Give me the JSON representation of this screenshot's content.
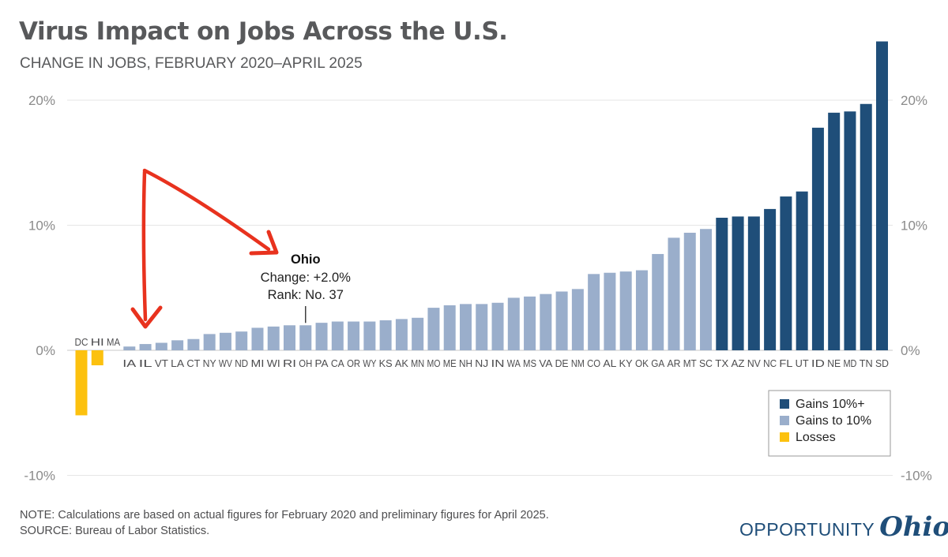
{
  "title": "Virus Impact on Jobs Across the U.S.",
  "subtitle": "CHANGE IN JOBS, FEBRUARY 2020–APRIL 2025",
  "note": "NOTE: Calculations are based on actual figures for February 2020 and preliminary figures for April 2025.",
  "source": "SOURCE: Bureau of Labor Statistics.",
  "logo": {
    "word": "OPPORTUNITY",
    "script": "Ohio"
  },
  "chart_data": {
    "type": "bar",
    "categories": [
      "DC",
      "HI",
      "MA",
      "IA",
      "IL",
      "VT",
      "LA",
      "CT",
      "NY",
      "WV",
      "ND",
      "MI",
      "WI",
      "RI",
      "OH",
      "PA",
      "CA",
      "OR",
      "WY",
      "KS",
      "AK",
      "MN",
      "MO",
      "ME",
      "NH",
      "NJ",
      "IN",
      "WA",
      "MS",
      "VA",
      "DE",
      "NM",
      "CO",
      "AL",
      "KY",
      "OK",
      "GA",
      "AR",
      "MT",
      "SC",
      "TX",
      "AZ",
      "NV",
      "NC",
      "FL",
      "UT",
      "ID",
      "NE",
      "MD",
      "TN",
      "SD"
    ],
    "values": [
      -5.2,
      -1.2,
      0.0,
      0.3,
      0.5,
      0.6,
      0.8,
      0.9,
      1.3,
      1.4,
      1.5,
      1.8,
      1.9,
      2.0,
      2.0,
      2.2,
      2.3,
      2.3,
      2.3,
      2.4,
      2.5,
      2.6,
      3.4,
      3.6,
      3.7,
      3.7,
      3.8,
      4.2,
      4.3,
      4.5,
      4.7,
      4.9,
      6.1,
      6.2,
      6.3,
      6.4,
      7.7,
      9.0,
      9.4,
      9.7,
      10.6,
      10.7,
      10.7,
      11.3,
      12.3,
      12.7,
      17.8,
      19.0,
      19.1,
      19.7,
      24.7
    ],
    "groups": [
      "Losses",
      "Losses",
      "Gains to 10%",
      "Gains to 10%",
      "Gains to 10%",
      "Gains to 10%",
      "Gains to 10%",
      "Gains to 10%",
      "Gains to 10%",
      "Gains to 10%",
      "Gains to 10%",
      "Gains to 10%",
      "Gains to 10%",
      "Gains to 10%",
      "Gains to 10%",
      "Gains to 10%",
      "Gains to 10%",
      "Gains to 10%",
      "Gains to 10%",
      "Gains to 10%",
      "Gains to 10%",
      "Gains to 10%",
      "Gains to 10%",
      "Gains to 10%",
      "Gains to 10%",
      "Gains to 10%",
      "Gains to 10%",
      "Gains to 10%",
      "Gains to 10%",
      "Gains to 10%",
      "Gains to 10%",
      "Gains to 10%",
      "Gains to 10%",
      "Gains to 10%",
      "Gains to 10%",
      "Gains to 10%",
      "Gains to 10%",
      "Gains to 10%",
      "Gains to 10%",
      "Gains to 10%",
      "Gains 10%+",
      "Gains 10%+",
      "Gains 10%+",
      "Gains 10%+",
      "Gains 10%+",
      "Gains 10%+",
      "Gains 10%+",
      "Gains 10%+",
      "Gains 10%+",
      "Gains 10%+",
      "Gains 10%+"
    ],
    "ylim": [
      -10,
      25
    ],
    "yticks": [
      -10,
      0,
      10,
      20
    ],
    "ytick_labels": [
      "-10%",
      "0%",
      "10%",
      "20%"
    ],
    "grid": true,
    "legend_position": "bottom-right",
    "legend": [
      {
        "name": "Gains 10%+",
        "color": "#1f4e79"
      },
      {
        "name": "Gains to 10%",
        "color": "#9aaecb"
      },
      {
        "name": "Losses",
        "color": "#fcc10f"
      }
    ],
    "annotation": {
      "category": "OH",
      "title": "Ohio",
      "line1": "Change: +2.0%",
      "line2": "Rank: No. 37"
    },
    "arrow_color": "#e8321e"
  }
}
